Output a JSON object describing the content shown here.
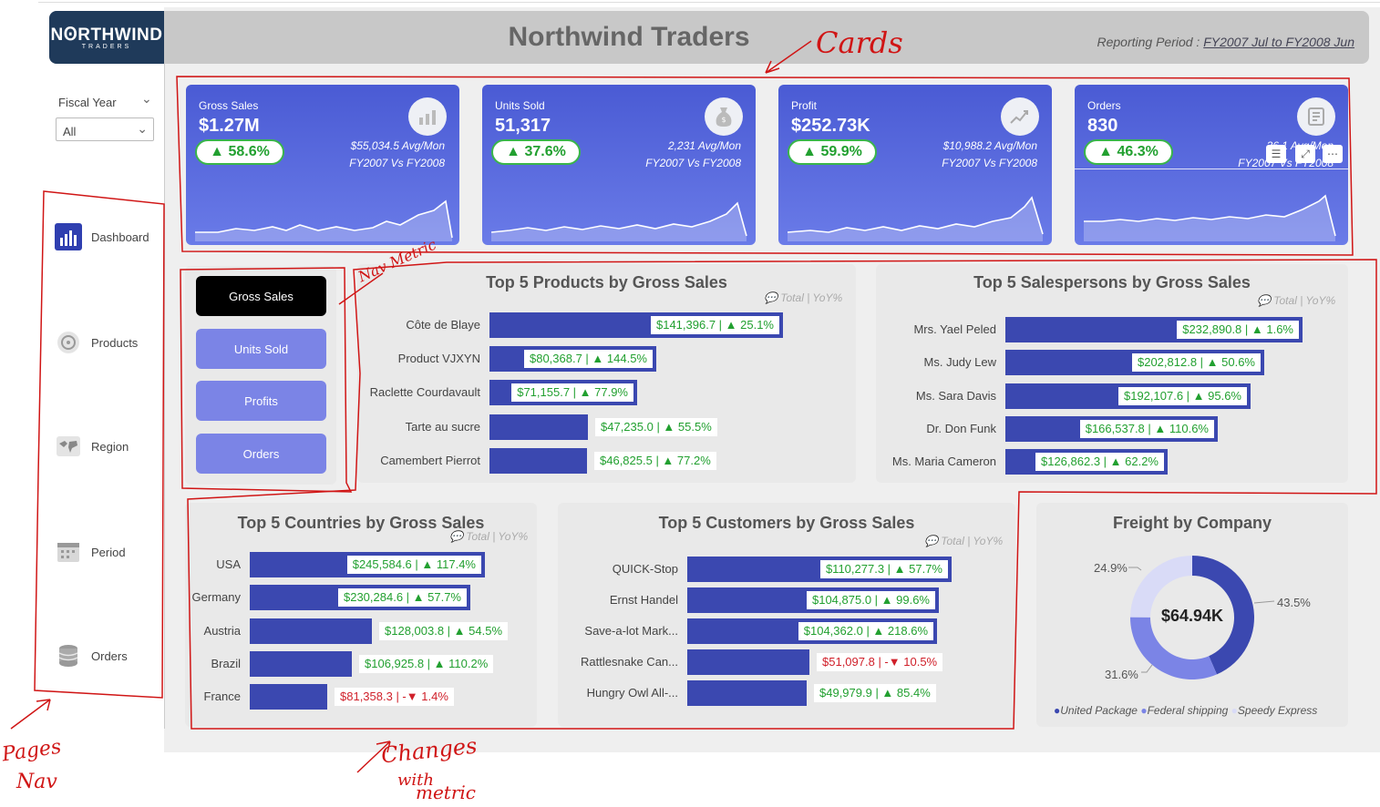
{
  "header": {
    "logo_main": "NꙨRTHWIND",
    "logo_sub": "TRADERS",
    "title": "Northwind Traders",
    "period_label": "Reporting Period :",
    "period_value": "FY2007 Jul to FY2008 Jun"
  },
  "filter": {
    "label": "Fiscal Year",
    "value": "All"
  },
  "nav": [
    {
      "label": "Dashboard",
      "icon": "dashboard-icon"
    },
    {
      "label": "Products",
      "icon": "products-icon"
    },
    {
      "label": "Region",
      "icon": "region-icon"
    },
    {
      "label": "Period",
      "icon": "calendar-icon"
    },
    {
      "label": "Orders",
      "icon": "orders-icon"
    }
  ],
  "cards": [
    {
      "label": "Gross Sales",
      "value": "$1.27M",
      "change": "▲ 58.6%",
      "avg": "$55,034.5 Avg/Mon",
      "compare": "FY2007 Vs FY2008",
      "icon": "sales-chart-icon"
    },
    {
      "label": "Units Sold",
      "value": "51,317",
      "change": "▲ 37.6%",
      "avg": "2,231 Avg/Mon",
      "compare": "FY2007 Vs FY2008",
      "icon": "money-bag-icon"
    },
    {
      "label": "Profit",
      "value": "$252.73K",
      "change": "▲ 59.9%",
      "avg": "$10,988.2 Avg/Mon",
      "compare": "FY2007 Vs FY2008",
      "icon": "growth-chart-icon"
    },
    {
      "label": "Orders",
      "value": "830",
      "change": "▲ 46.3%",
      "avg": "36.1 Avg/Mon",
      "compare": "FY2007 Vs FY2008",
      "icon": "order-form-icon"
    }
  ],
  "metric_buttons": [
    "Gross Sales",
    "Units Sold",
    "Profits",
    "Orders"
  ],
  "legend_text": "Total | YoY%",
  "products": {
    "title": "Top 5 Products by Gross Sales",
    "rows": [
      {
        "name": "Côte de Blaye",
        "value": 141396.7,
        "tag": "$141,396.7 | ▲ 25.1%",
        "neg": false
      },
      {
        "name": "Product VJXYN",
        "value": 80368.7,
        "tag": "$80,368.7 | ▲ 144.5%",
        "neg": false
      },
      {
        "name": "Raclette Courdavault",
        "value": 71155.7,
        "tag": "$71,155.7 | ▲ 77.9%",
        "neg": false
      },
      {
        "name": "Tarte au sucre",
        "value": 47235.0,
        "tag": "$47,235.0 | ▲ 55.5%",
        "neg": false
      },
      {
        "name": "Camembert Pierrot",
        "value": 46825.5,
        "tag": "$46,825.5 | ▲ 77.2%",
        "neg": false
      }
    ]
  },
  "salespersons": {
    "title": "Top 5 Salespersons by Gross Sales",
    "rows": [
      {
        "name": "Mrs. Yael Peled",
        "value": 232890.8,
        "tag": "$232,890.8 | ▲ 1.6%",
        "neg": false
      },
      {
        "name": "Ms. Judy Lew",
        "value": 202812.8,
        "tag": "$202,812.8 | ▲ 50.6%",
        "neg": false
      },
      {
        "name": "Ms. Sara Davis",
        "value": 192107.6,
        "tag": "$192,107.6 | ▲ 95.6%",
        "neg": false
      },
      {
        "name": "Dr. Don Funk",
        "value": 166537.8,
        "tag": "$166,537.8 | ▲ 110.6%",
        "neg": false
      },
      {
        "name": "Ms. Maria Cameron",
        "value": 126862.3,
        "tag": "$126,862.3 | ▲ 62.2%",
        "neg": false
      }
    ]
  },
  "countries": {
    "title": "Top 5 Countries by Gross Sales",
    "rows": [
      {
        "name": "USA",
        "value": 245584.6,
        "tag": "$245,584.6 | ▲ 117.4%",
        "neg": false
      },
      {
        "name": "Germany",
        "value": 230284.6,
        "tag": "$230,284.6 | ▲ 57.7%",
        "neg": false
      },
      {
        "name": "Austria",
        "value": 128003.8,
        "tag": "$128,003.8 | ▲ 54.5%",
        "neg": false
      },
      {
        "name": "Brazil",
        "value": 106925.8,
        "tag": "$106,925.8 | ▲ 110.2%",
        "neg": false
      },
      {
        "name": "France",
        "value": 81358.3,
        "tag": "$81,358.3 | -▼ 1.4%",
        "neg": true
      }
    ]
  },
  "customers": {
    "title": "Top 5 Customers by Gross Sales",
    "rows": [
      {
        "name": "QUICK-Stop",
        "value": 110277.3,
        "tag": "$110,277.3 | ▲ 57.7%",
        "neg": false
      },
      {
        "name": "Ernst Handel",
        "value": 104875.0,
        "tag": "$104,875.0 | ▲ 99.6%",
        "neg": false
      },
      {
        "name": "Save-a-lot Mark...",
        "value": 104362.0,
        "tag": "$104,362.0 | ▲ 218.6%",
        "neg": false
      },
      {
        "name": "Rattlesnake Can...",
        "value": 51097.8,
        "tag": "$51,097.8 | -▼ 10.5%",
        "neg": true
      },
      {
        "name": "Hungry Owl All-...",
        "value": 49979.9,
        "tag": "$49,979.9 | ▲ 85.4%",
        "neg": false
      }
    ]
  },
  "freight": {
    "title": "Freight by Company",
    "total": "$64.94K",
    "slices": [
      {
        "name": "United Package",
        "pct": 43.5,
        "label": "43.5%",
        "color": "#3b48b0"
      },
      {
        "name": "Federal shipping",
        "pct": 31.6,
        "label": "31.6%",
        "color": "#7b84e6"
      },
      {
        "name": "Speedy Express",
        "pct": 24.9,
        "label": "24.9%",
        "color": "#d9dbf7"
      }
    ]
  },
  "annotations": {
    "cards": "Cards",
    "nav_metric": "Nav Metric",
    "pages_nav_1": "Pages",
    "pages_nav_2": "Nav",
    "changes_1": "Changes",
    "changes_2": "with",
    "changes_3": "metric"
  },
  "colors": {
    "accent": "#3b48b0",
    "card": "#5566dd",
    "positive": "#22a030",
    "negative": "#d0202a",
    "annotation": "#d01515"
  }
}
